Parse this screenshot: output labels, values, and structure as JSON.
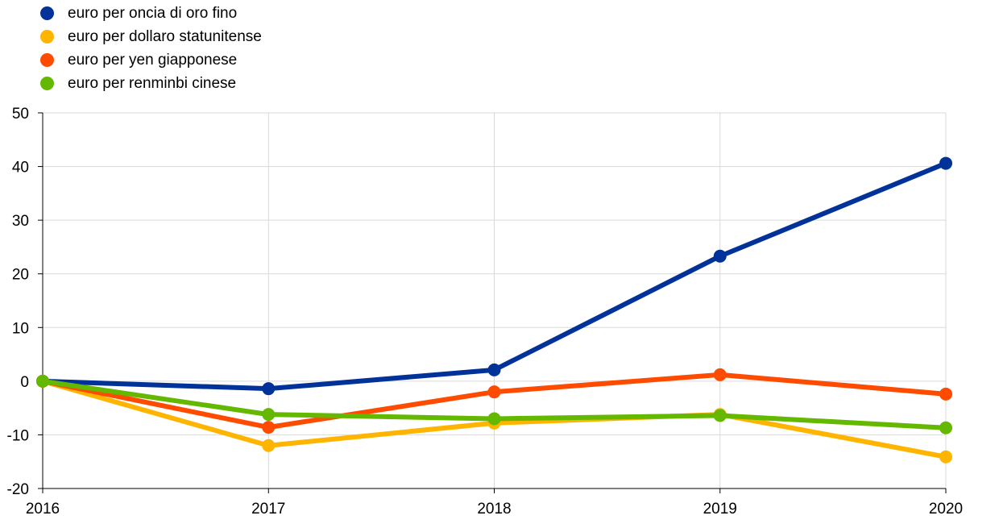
{
  "chart_data": {
    "type": "line",
    "title": "",
    "xlabel": "",
    "ylabel": "",
    "x": [
      "2016",
      "2017",
      "2018",
      "2019",
      "2020"
    ],
    "ylim": [
      -20,
      50
    ],
    "yticks": [
      "-20",
      "-10",
      "0",
      "10",
      "20",
      "30",
      "40",
      "50"
    ],
    "grid": true,
    "legend_position": "top-left",
    "series": [
      {
        "name": "euro per oncia di oro fino",
        "color": "#003299",
        "values": [
          0,
          -1.4,
          2.1,
          23.3,
          40.6
        ]
      },
      {
        "name": "euro per dollaro statunitense",
        "color": "#FFB400",
        "values": [
          0,
          -12.0,
          -7.8,
          -6.2,
          -14.1
        ]
      },
      {
        "name": "euro per yen giapponese",
        "color": "#FF4B00",
        "values": [
          0,
          -8.6,
          -2.0,
          1.2,
          -2.4
        ]
      },
      {
        "name": "euro per renminbi cinese",
        "color": "#65B800",
        "values": [
          0,
          -6.2,
          -7.0,
          -6.4,
          -8.7
        ]
      }
    ]
  }
}
